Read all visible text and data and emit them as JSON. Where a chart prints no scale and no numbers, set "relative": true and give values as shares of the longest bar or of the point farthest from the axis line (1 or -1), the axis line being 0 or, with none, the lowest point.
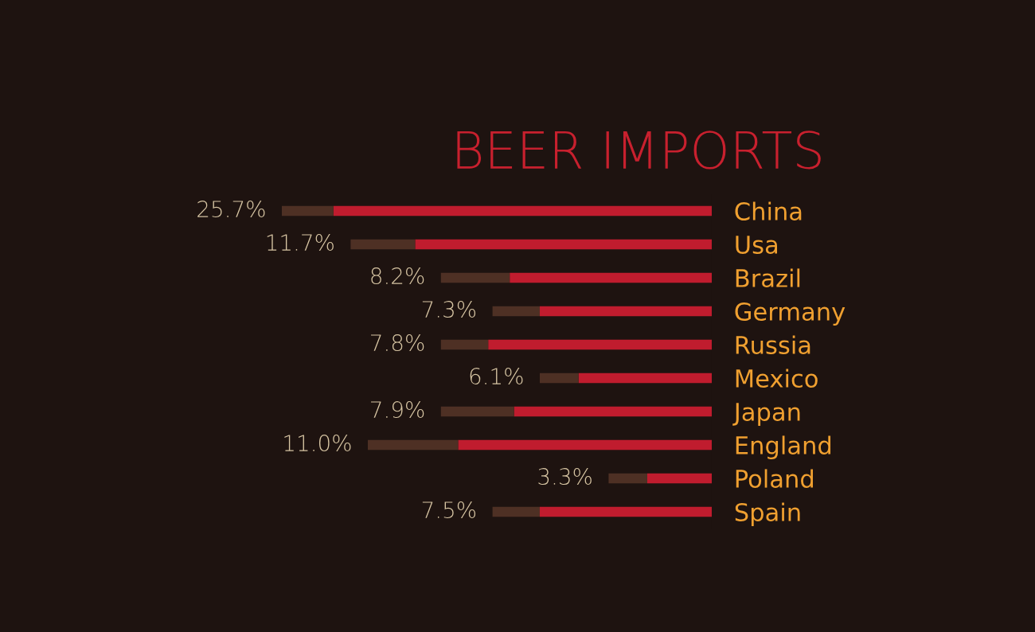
{
  "chart_data": {
    "type": "bar",
    "title": "BEER IMPORTS",
    "orientation": "horizontal",
    "stacked": true,
    "relative": true,
    "categories": [
      "China",
      "Usa",
      "Brazil",
      "Germany",
      "Russia",
      "Mexico",
      "Japan",
      "England",
      "Poland",
      "Spain"
    ],
    "series": [
      {
        "color": "#c01c2e",
        "values": [
          0.88,
          0.69,
          0.47,
          0.4,
          0.52,
          0.31,
          0.46,
          0.59,
          0.15,
          0.4
        ]
      },
      {
        "color": "#4e3024",
        "values": [
          0.12,
          0.15,
          0.16,
          0.11,
          0.11,
          0.09,
          0.17,
          0.21,
          0.09,
          0.11
        ]
      }
    ],
    "annotations": [
      "25.7%",
      "11.7%",
      "8.2%",
      "7.3%",
      "7.8%",
      "6.1%",
      "7.9%",
      "11.0%",
      "3.3%",
      "7.5%"
    ],
    "grid": false
  }
}
